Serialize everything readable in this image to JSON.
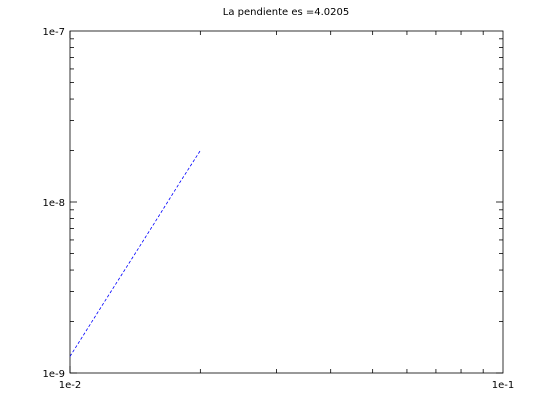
{
  "chart_data": {
    "type": "line",
    "title": "La pendiente es =4.0205",
    "xlabel": "",
    "ylabel": "",
    "xscale": "log",
    "yscale": "log",
    "xlim": [
      0.01,
      0.1
    ],
    "ylim": [
      1e-09,
      1e-07
    ],
    "x_tick_labels": [
      "1e-2",
      "1e-1"
    ],
    "x_tick_values": [
      0.01,
      0.1
    ],
    "y_tick_labels": [
      "1e-9",
      "1e-8",
      "1e-7"
    ],
    "y_tick_values": [
      1e-09,
      1e-08,
      1e-07
    ],
    "grid": false,
    "series": [
      {
        "color": "#0000ff",
        "line_style": "dashed",
        "x": [
          0.01,
          0.012,
          0.014,
          0.016,
          0.018,
          0.02
        ],
        "y": [
          1.25e-09,
          2.6e-09,
          4.8e-09,
          8.2e-09,
          1.32e-08,
          2e-08
        ]
      }
    ]
  }
}
